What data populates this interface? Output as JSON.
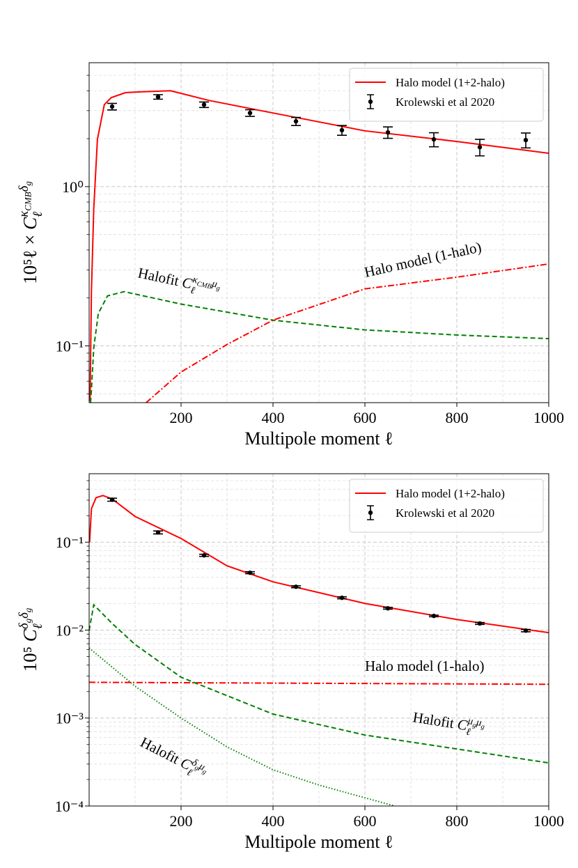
{
  "chart_data": [
    {
      "type": "line",
      "yscale": "log",
      "grid": true,
      "minor_grid": true,
      "legend": "upper right",
      "xlabel": "Multipole moment ℓ",
      "ylabel": {
        "text": "10⁵ℓ ×",
        "symbol": "C",
        "sub": "ℓ",
        "sup": [
          {
            "t": "κ",
            "s": "CMB"
          },
          {
            "t": "δ",
            "s": "g"
          }
        ]
      },
      "xlim": [
        0,
        1000
      ],
      "xticks": [
        200,
        400,
        600,
        800,
        1000
      ],
      "ylim": [
        0.044,
        6
      ],
      "yticks": [
        {
          "value": 1,
          "label": "10⁰"
        },
        {
          "value": 0.1,
          "label": "10⁻¹"
        }
      ],
      "series": [
        {
          "name": "Halo model (1+2-halo)",
          "color": "#ff0000",
          "style": "solid",
          "x": [
            2,
            5,
            10,
            18,
            33,
            48,
            79,
            106,
            177,
            260,
            400,
            600,
            800,
            1000
          ],
          "values": [
            0.045,
            0.22,
            0.72,
            1.98,
            3.27,
            3.62,
            3.89,
            3.93,
            4.0,
            3.48,
            2.9,
            2.24,
            1.92,
            1.62
          ]
        },
        {
          "name": "Krolewski et al 2020",
          "color": "#000000",
          "style": "errorbar",
          "x": [
            50,
            150,
            250,
            350,
            450,
            550,
            650,
            750,
            850,
            950
          ],
          "values": [
            3.18,
            3.66,
            3.27,
            2.9,
            2.57,
            2.26,
            2.19,
            1.98,
            1.77,
            1.96
          ],
          "errors": [
            0.15,
            0.12,
            0.13,
            0.14,
            0.15,
            0.16,
            0.18,
            0.2,
            0.21,
            0.21
          ]
        },
        {
          "color": "#008000",
          "style": "dashed",
          "x": [
            3,
            5,
            10,
            20,
            40,
            76,
            200,
            400,
            600,
            800,
            1000
          ],
          "values": [
            0.044,
            0.053,
            0.097,
            0.16,
            0.206,
            0.219,
            0.183,
            0.145,
            0.126,
            0.117,
            0.111
          ]
        },
        {
          "color": "#ff0000",
          "style": "dashdot",
          "x": [
            124,
            200,
            300,
            400,
            600,
            800,
            1000
          ],
          "values": [
            0.044,
            0.0685,
            0.102,
            0.145,
            0.228,
            0.27,
            0.327
          ]
        }
      ],
      "annotations": [
        {
          "text": "Halofit",
          "symbol": "C",
          "sub": "ℓ",
          "sup": [
            {
              "t": "κ",
              "s": "CMB"
            },
            {
              "t": "μ",
              "s": "g"
            }
          ]
        },
        {
          "text": "Halo model (1-halo)"
        }
      ]
    },
    {
      "type": "line",
      "yscale": "log",
      "grid": true,
      "minor_grid": true,
      "legend": "upper right",
      "xlabel": "Multipole moment ℓ",
      "ylabel": {
        "text": "10⁵",
        "symbol": "C",
        "sub": "ℓ",
        "sup": [
          {
            "t": "δ",
            "s": "g"
          },
          {
            "t": "δ",
            "s": "g"
          }
        ]
      },
      "xlim": [
        0,
        1000
      ],
      "xticks": [
        200,
        400,
        600,
        800,
        1000
      ],
      "ylim": [
        0.0001,
        0.6
      ],
      "yticks": [
        {
          "value": 0.1,
          "label": "10⁻¹"
        },
        {
          "value": 0.01,
          "label": "10⁻²"
        },
        {
          "value": 0.001,
          "label": "10⁻³"
        },
        {
          "value": 0.0001,
          "label": "10⁻⁴"
        }
      ],
      "series": [
        {
          "name": "Halo model (1+2-halo)",
          "color": "#ff0000",
          "style": "solid",
          "x": [
            1,
            5,
            15,
            30,
            50,
            100,
            200,
            300,
            400,
            600,
            800,
            1000
          ],
          "values": [
            0.1,
            0.24,
            0.32,
            0.339,
            0.31,
            0.196,
            0.11,
            0.0538,
            0.0354,
            0.0201,
            0.0132,
            0.00935
          ]
        },
        {
          "name": "Krolewski et al 2020",
          "color": "#000000",
          "style": "errorbar",
          "x": [
            50,
            150,
            250,
            350,
            450,
            550,
            650,
            750,
            850,
            950
          ],
          "values": [
            0.304,
            0.129,
            0.0708,
            0.0449,
            0.0311,
            0.0233,
            0.0177,
            0.0145,
            0.0119,
            0.00987
          ],
          "errors": [
            0.012,
            0.005,
            0.002,
            0.0012,
            0.0008,
            0.0006,
            0.0004,
            0.0003,
            0.0003,
            0.0003
          ]
        },
        {
          "color": "#ff0000",
          "style": "dashdot",
          "x": [
            0,
            1000
          ],
          "values": [
            0.00255,
            0.00242
          ]
        },
        {
          "color": "#008000",
          "style": "dashed",
          "x": [
            0,
            10,
            50,
            100,
            200,
            400,
            600,
            800,
            1000
          ],
          "values": [
            0.0099,
            0.0194,
            0.0119,
            0.00686,
            0.00291,
            0.00111,
            0.000641,
            0.000445,
            0.000309
          ]
        },
        {
          "color": "#008000",
          "style": "dotted",
          "x": [
            0,
            100,
            200,
            300,
            400,
            500,
            600,
            665
          ],
          "values": [
            0.00626,
            0.0023,
            0.001,
            0.00047,
            0.000258,
            0.000173,
            0.000124,
            0.0001
          ]
        }
      ],
      "annotations": [
        {
          "text": "Halo model (1-halo)"
        },
        {
          "text": "Halofit",
          "symbol": "C",
          "sub": "ℓ",
          "sup": [
            {
              "t": "μ",
              "s": "g"
            },
            {
              "t": "μ",
              "s": "g"
            }
          ]
        },
        {
          "text": "Halofit",
          "symbol": "C",
          "sub": "ℓ",
          "sup": [
            {
              "t": "δ",
              "s": "g"
            },
            {
              "t": "μ",
              "s": "g"
            }
          ]
        }
      ]
    }
  ]
}
